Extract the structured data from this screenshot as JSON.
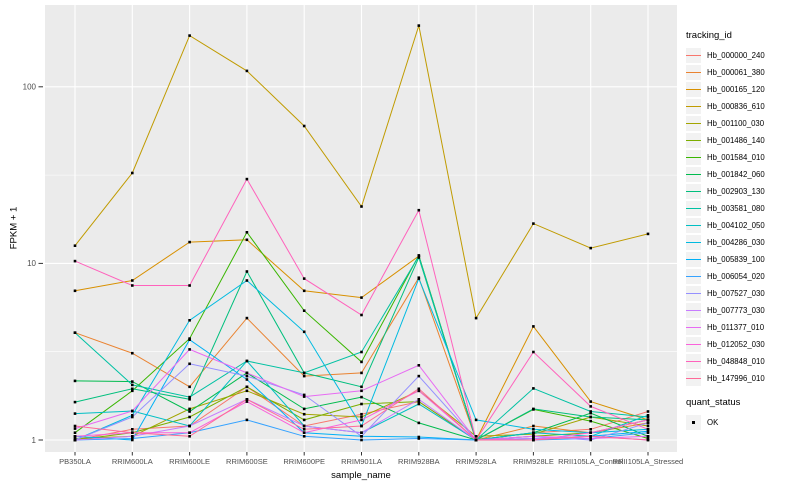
{
  "figure": {
    "background": "#FFFFFF",
    "panel_background": "#EBEBEB",
    "grid_color": "#FFFFFF",
    "tick_color": "#333333",
    "tick_label_color": "#4D4D4D",
    "point_color": "#000000"
  },
  "chart_data": {
    "type": "line",
    "title": "",
    "xlabel": "sample_name",
    "ylabel": "FPKM + 1",
    "y_scale": "log10",
    "y_ticks": [
      1,
      10,
      100
    ],
    "y_minor_ticks": [
      3.162,
      31.62
    ],
    "ylim": [
      0.85,
      290
    ],
    "grid": true,
    "legend_position": "right",
    "categories": [
      "PB350LA",
      "RRIM600LA",
      "RRIM600LE",
      "RRIM600SE",
      "RRIM600PE",
      "RRIM901LA",
      "RRIM928BA",
      "RRIM928LA",
      "RRIM928LE",
      "RRII105LA_Control",
      "RRII105LA_Stressed"
    ],
    "series": [
      {
        "name": "Hb_000000_240",
        "color": "#F8766D",
        "values": [
          1.0,
          1.15,
          1.2,
          2.0,
          1.2,
          1.4,
          1.65,
          1.0,
          1.1,
          1.15,
          1.45
        ]
      },
      {
        "name": "Hb_000061_380",
        "color": "#EA8331",
        "values": [
          4.05,
          3.1,
          2.0,
          4.9,
          2.3,
          2.4,
          8.3,
          1.0,
          1.2,
          1.1,
          1.25
        ]
      },
      {
        "name": "Hb_000165_120",
        "color": "#D89000",
        "values": [
          7.0,
          8.0,
          13.2,
          13.6,
          7.0,
          6.4,
          11.0,
          1.0,
          4.4,
          1.65,
          1.3
        ]
      },
      {
        "name": "Hb_000836_610",
        "color": "#C09B00",
        "values": [
          12.6,
          32.5,
          195,
          123,
          60,
          21,
          222,
          4.9,
          16.8,
          12.2,
          14.7
        ]
      },
      {
        "name": "Hb_001100_030",
        "color": "#A3A500",
        "values": [
          1.02,
          1.05,
          1.5,
          1.9,
          1.4,
          1.35,
          1.9,
          1.05,
          1.08,
          1.35,
          1.2
        ]
      },
      {
        "name": "Hb_001486_140",
        "color": "#7CAE00",
        "values": [
          1.0,
          1.1,
          1.35,
          2.0,
          1.3,
          1.6,
          1.65,
          1.0,
          1.05,
          1.1,
          1.3
        ]
      },
      {
        "name": "Hb_001584_010",
        "color": "#39B600",
        "values": [
          1.1,
          1.9,
          3.75,
          15.0,
          5.4,
          2.77,
          11.1,
          1.0,
          1.49,
          1.28,
          1.02
        ]
      },
      {
        "name": "Hb_001842_060",
        "color": "#00BB4E",
        "values": [
          2.16,
          2.14,
          1.45,
          2.4,
          1.5,
          1.75,
          1.25,
          1.0,
          1.1,
          1.42,
          1.05
        ]
      },
      {
        "name": "Hb_002903_130",
        "color": "#00BF7D",
        "values": [
          1.64,
          1.95,
          1.7,
          9.0,
          2.4,
          2.0,
          10.8,
          1.0,
          1.5,
          1.35,
          1.3
        ]
      },
      {
        "name": "Hb_003581_080",
        "color": "#00C1A3",
        "values": [
          4.05,
          2.05,
          1.75,
          2.8,
          2.4,
          3.15,
          11.0,
          1.0,
          1.96,
          1.45,
          1.35
        ]
      },
      {
        "name": "Hb_004102_050",
        "color": "#00BFC4",
        "values": [
          1.41,
          1.46,
          1.2,
          2.8,
          1.2,
          1.1,
          1.6,
          1.0,
          1.1,
          1.05,
          1.38
        ]
      },
      {
        "name": "Hb_004286_030",
        "color": "#00BAE0",
        "values": [
          1.0,
          1.38,
          4.76,
          8.0,
          4.1,
          1.2,
          8.2,
          1.3,
          1.15,
          1.1,
          1.15
        ]
      },
      {
        "name": "Hb_005839_100",
        "color": "#00B0F6",
        "values": [
          1.05,
          1.0,
          3.7,
          2.2,
          1.1,
          1.05,
          1.04,
          1.0,
          1.02,
          1.05,
          1.12
        ]
      },
      {
        "name": "Hb_006054_020",
        "color": "#35A2FF",
        "values": [
          1.0,
          1.02,
          1.1,
          1.3,
          1.05,
          1.0,
          1.02,
          1.0,
          1.0,
          1.02,
          1.1
        ]
      },
      {
        "name": "Hb_007527_030",
        "color": "#9590FF",
        "values": [
          1.0,
          1.35,
          2.7,
          2.3,
          1.8,
          1.05,
          2.3,
          1.0,
          1.05,
          1.0,
          1.25
        ]
      },
      {
        "name": "Hb_007773_030",
        "color": "#C77CFF",
        "values": [
          1.0,
          1.05,
          1.2,
          1.7,
          1.2,
          1.1,
          1.7,
          1.0,
          1.02,
          1.05,
          1.0
        ]
      },
      {
        "name": "Hb_011377_010",
        "color": "#E76BF3",
        "values": [
          1.16,
          1.46,
          3.26,
          2.4,
          1.76,
          1.9,
          2.65,
          1.0,
          1.05,
          1.02,
          1.05
        ]
      },
      {
        "name": "Hb_012052_030",
        "color": "#FA62DB",
        "values": [
          1.05,
          1.1,
          1.1,
          1.65,
          1.1,
          1.3,
          1.9,
          1.0,
          1.0,
          1.1,
          1.3
        ]
      },
      {
        "name": "Hb_048848_010",
        "color": "#FF62BC",
        "values": [
          10.3,
          7.5,
          7.5,
          30.0,
          8.2,
          5.1,
          20.0,
          1.0,
          3.15,
          1.55,
          1.15
        ]
      },
      {
        "name": "Hb_147996_010",
        "color": "#FF6A98",
        "values": [
          1.2,
          1.1,
          1.05,
          1.7,
          1.15,
          1.2,
          1.95,
          1.0,
          1.0,
          1.05,
          1.0
        ]
      }
    ],
    "legend": {
      "color_title": "tracking_id",
      "shape_title": "quant_status",
      "shape_items": [
        {
          "label": "OK"
        }
      ]
    }
  }
}
